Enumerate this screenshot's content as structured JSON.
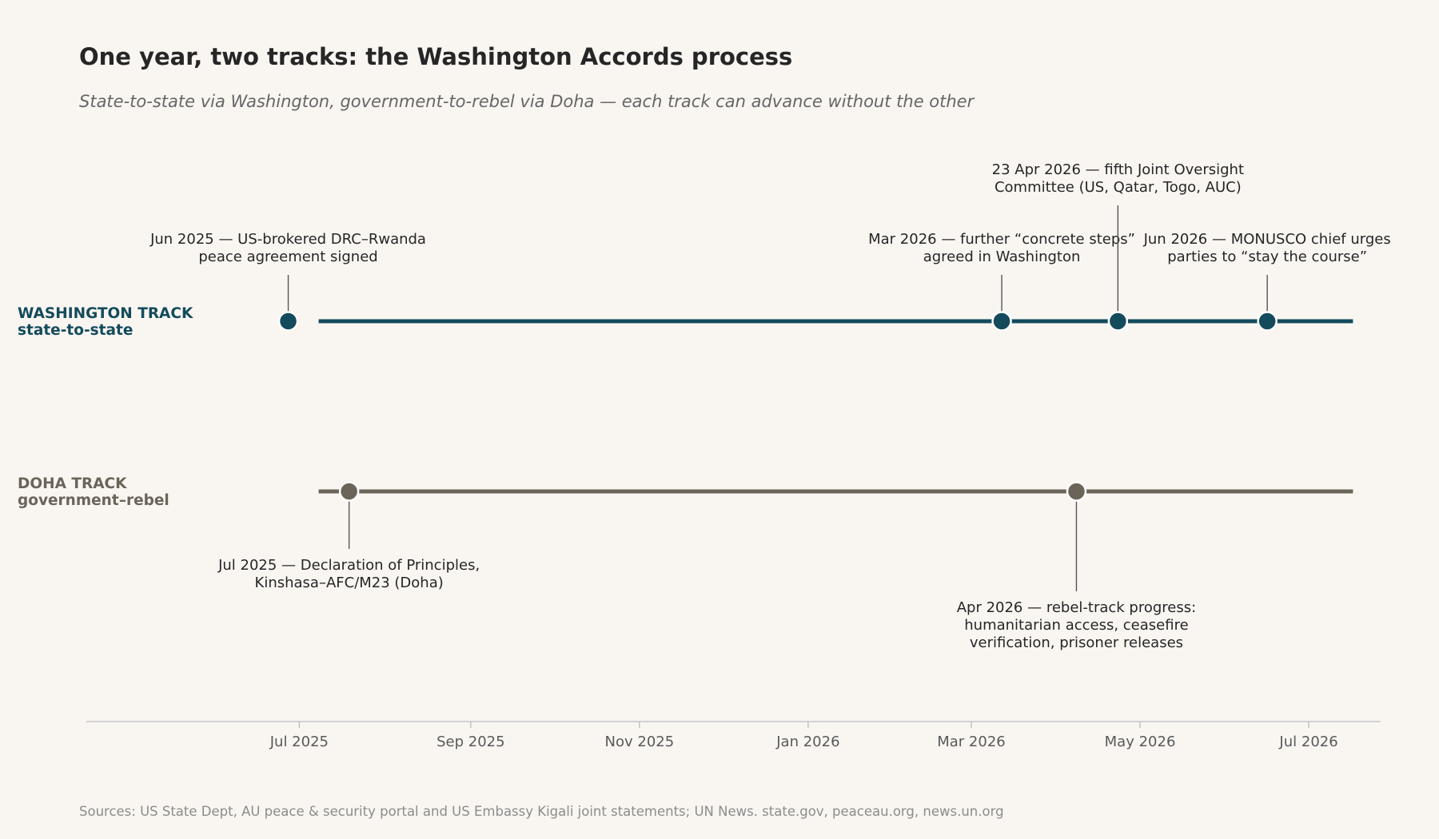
{
  "chart_data": {
    "type": "timeline",
    "title": "One year, two tracks: the Washington Accords process",
    "subtitle": "State-to-state via Washington, government-to-rebel via Doha — each track can advance without the other",
    "x_range": [
      "2025-04-15",
      "2026-07-27"
    ],
    "x_ticks": [
      {
        "date": "2025-07-01",
        "label": "Jul 2025"
      },
      {
        "date": "2025-09-01",
        "label": "Sep 2025"
      },
      {
        "date": "2025-11-01",
        "label": "Nov 2025"
      },
      {
        "date": "2026-01-01",
        "label": "Jan 2026"
      },
      {
        "date": "2026-03-01",
        "label": "Mar 2026"
      },
      {
        "date": "2026-05-01",
        "label": "May 2026"
      },
      {
        "date": "2026-07-01",
        "label": "Jul 2026"
      }
    ],
    "tracks": [
      {
        "name": "WASHINGTON TRACK",
        "sub": "state-to-state",
        "color": "#144b5c",
        "line_range": [
          "2025-07-08",
          "2026-07-17"
        ],
        "events": [
          {
            "date": "2025-06-27",
            "label_lines": [
              "Jun 2025 — US-brokered DRC–Rwanda",
              "peace agreement signed"
            ]
          },
          {
            "date": "2026-03-12",
            "label_lines": [
              "Mar 2026 — further “concrete steps”",
              "agreed in Washington"
            ]
          },
          {
            "date": "2026-04-23",
            "label_lines": [
              "23 Apr 2026 — fifth Joint Oversight",
              "Committee (US, Qatar, Togo, AUC)"
            ]
          },
          {
            "date": "2026-06-16",
            "label_lines": [
              "Jun 2026 — MONUSCO chief urges",
              "parties to “stay the course”"
            ]
          }
        ]
      },
      {
        "name": "DOHA TRACK",
        "sub": "government–rebel",
        "color": "#6b6459",
        "line_range": [
          "2025-07-08",
          "2026-07-17"
        ],
        "events": [
          {
            "date": "2025-07-19",
            "label_lines": [
              "Jul 2025 — Declaration of Principles,",
              "Kinshasa–AFC/M23 (Doha)"
            ]
          },
          {
            "date": "2026-04-08",
            "label_lines": [
              "Apr 2026 — rebel-track progress:",
              "humanitarian access, ceasefire",
              "verification, prisoner releases"
            ]
          }
        ]
      }
    ]
  },
  "source": "Sources: US State Dept, AU peace & security portal and US Embassy Kigali joint statements; UN News. state.gov, peaceau.org, news.un.org",
  "colors": {
    "background": "#f9f6f2",
    "axis": "#bbbbbb",
    "leader": "#555555"
  }
}
